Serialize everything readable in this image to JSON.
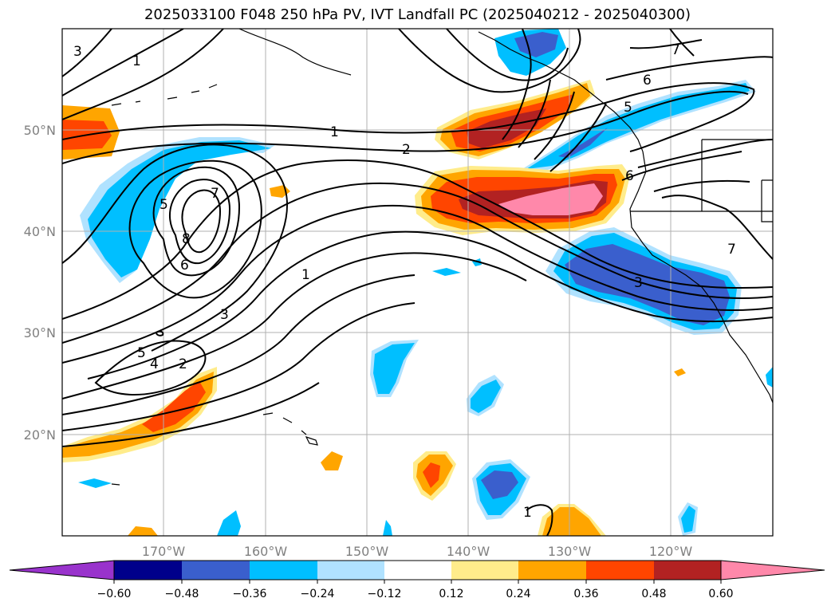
{
  "title": "2025033100 F048 250 hPa PV, IVT Landfall PC (2025040212 - 2025040300)",
  "longitude_labels": [
    "170°W",
    "160°W",
    "150°W",
    "140°W",
    "130°W",
    "120°W"
  ],
  "latitude_labels": [
    "50°N",
    "40°N",
    "30°N",
    "20°N"
  ],
  "contour_labels": [
    "3",
    "1",
    "1",
    "2",
    "5",
    "7",
    "8",
    "6",
    "1",
    "3",
    "5",
    "4",
    "2",
    "6",
    "5",
    "7",
    "6",
    "3",
    "7",
    "1"
  ],
  "colorbar": {
    "tick_labels": [
      "−0.60",
      "−0.48",
      "−0.36",
      "−0.24",
      "−0.12",
      "0.12",
      "0.24",
      "0.36",
      "0.48",
      "0.60"
    ],
    "colors": [
      "#9933cc",
      "#00008b",
      "#3a5fcd",
      "#00bfff",
      "#b0e2ff",
      "#ffffff",
      "#ffec8b",
      "#ffa500",
      "#ff4500",
      "#b22222",
      "#ff88aa"
    ]
  },
  "colors": {
    "grid": "#b0b0b0",
    "contour": "#000000",
    "coast": "#000000"
  }
}
